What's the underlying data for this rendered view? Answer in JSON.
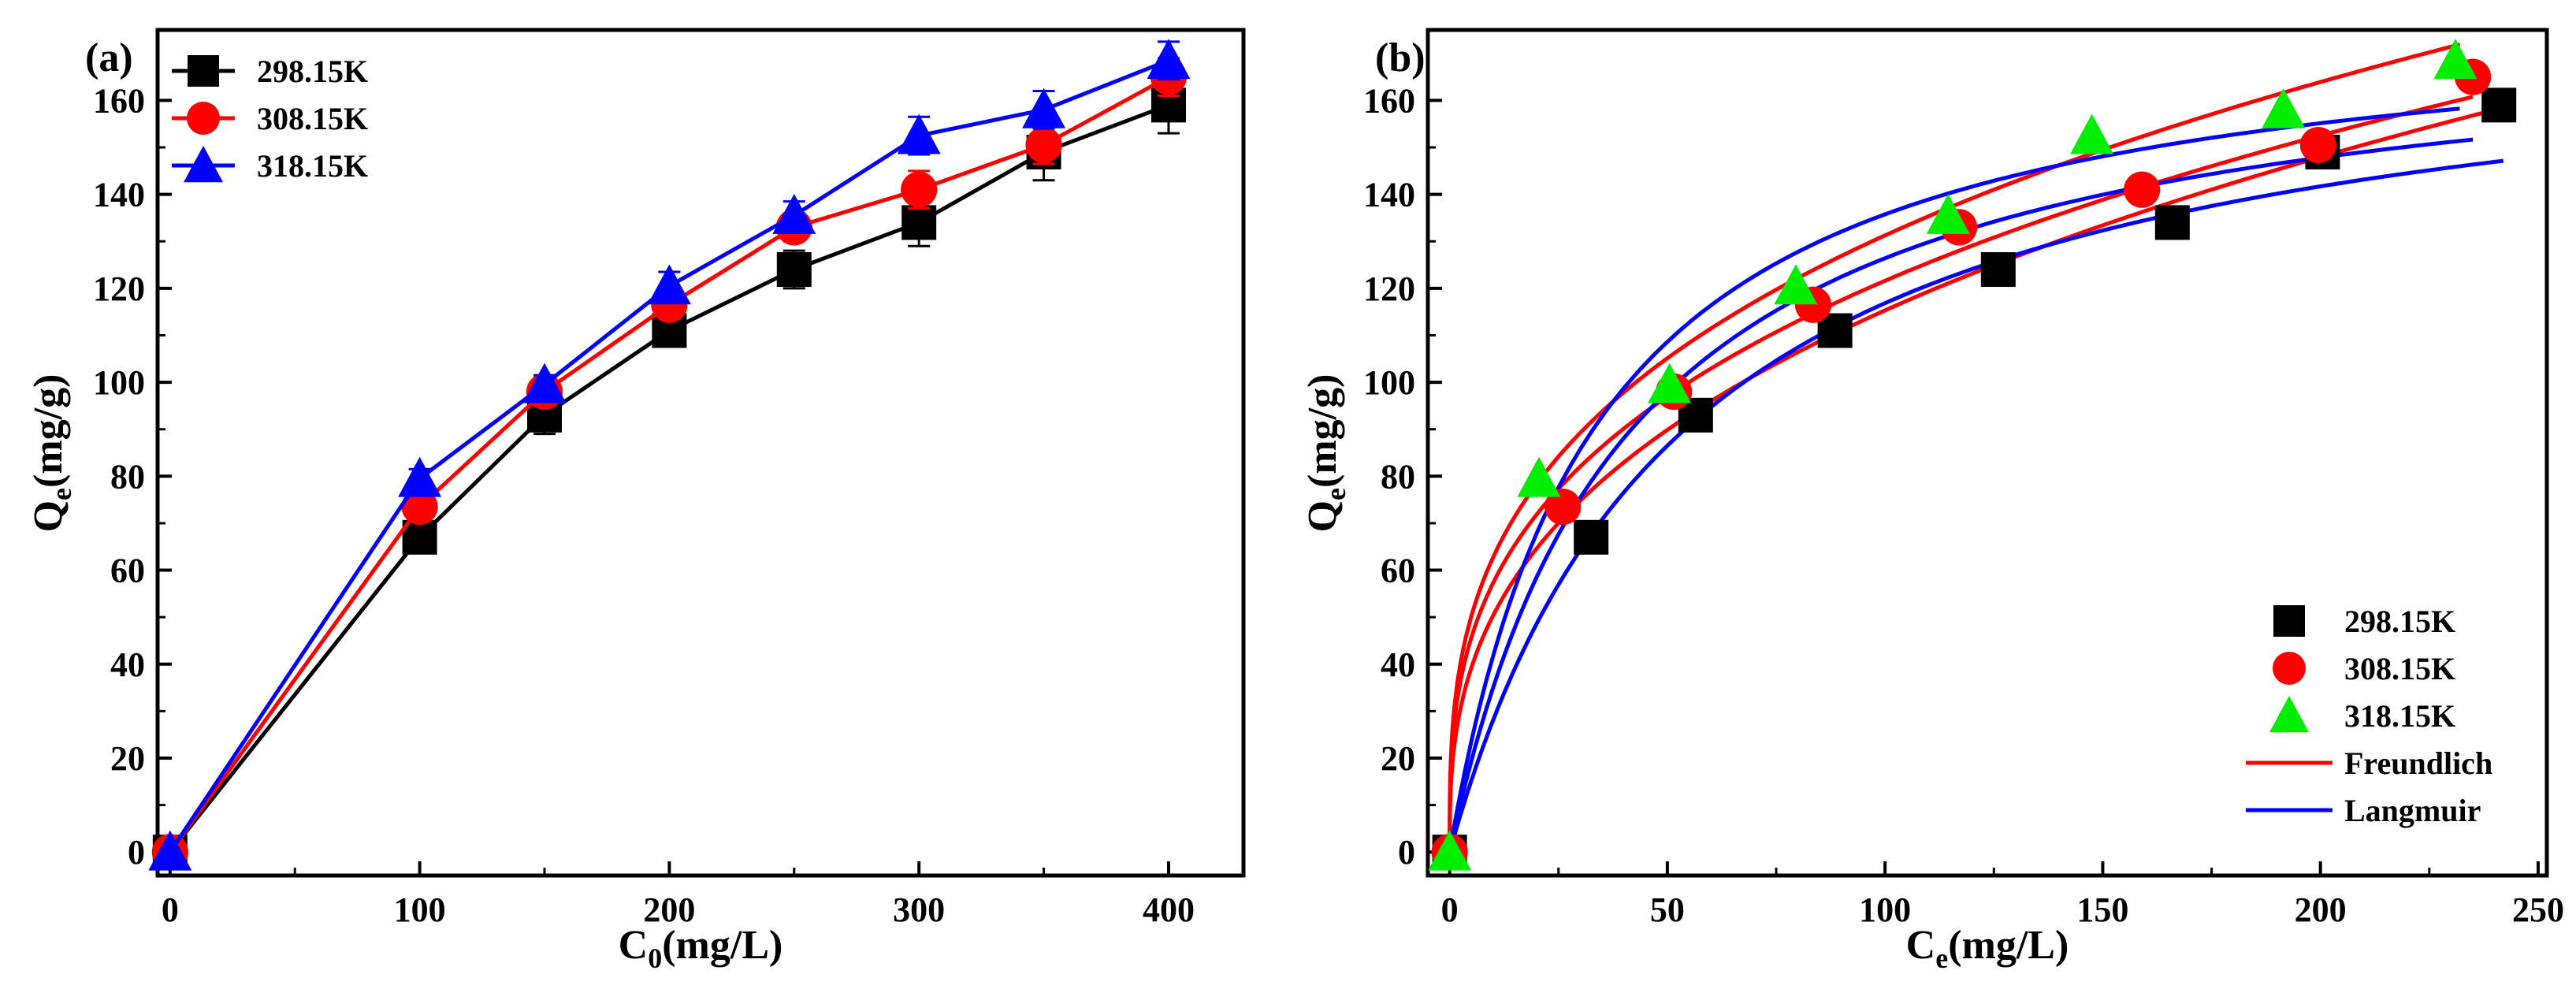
{
  "chart_data": [
    {
      "type": "line",
      "panel_label": "(a)",
      "xlabel": "C",
      "xlabel_sub": "0",
      "xlabel_unit": "(mg/L)",
      "ylabel": "Q",
      "ylabel_sub": "e",
      "ylabel_unit": "(mg/g)",
      "xlim": [
        -5,
        430
      ],
      "ylim": [
        -5,
        175
      ],
      "xticks": [
        0,
        100,
        200,
        300,
        400
      ],
      "yticks": [
        0,
        20,
        40,
        60,
        80,
        100,
        120,
        140,
        160
      ],
      "legend_position": "top-left",
      "series": [
        {
          "name": "298.15K",
          "color": "#000000",
          "marker": "square",
          "x": [
            0,
            100,
            150,
            200,
            250,
            300,
            350,
            400
          ],
          "y": [
            0,
            67,
            93,
            111,
            124,
            134,
            149,
            159
          ],
          "err": [
            0,
            3,
            4,
            3,
            4,
            5,
            6,
            6
          ]
        },
        {
          "name": "308.15K",
          "color": "#ff0000",
          "marker": "circle",
          "x": [
            0,
            100,
            150,
            200,
            250,
            300,
            350,
            400
          ],
          "y": [
            0,
            73.5,
            98,
            116.5,
            133,
            141,
            150.5,
            165
          ],
          "err": [
            0,
            2,
            3,
            3,
            3,
            4,
            4,
            4
          ]
        },
        {
          "name": "318.15K",
          "color": "#0000ff",
          "marker": "triangle",
          "x": [
            0,
            100,
            150,
            200,
            250,
            300,
            350,
            400
          ],
          "y": [
            0,
            79.5,
            99.5,
            120.5,
            135.5,
            152.5,
            158,
            168.5
          ],
          "err": [
            0,
            2,
            2,
            3,
            3,
            4,
            4,
            4
          ]
        }
      ]
    },
    {
      "type": "scatter",
      "panel_label": "(b)",
      "xlabel": "C",
      "xlabel_sub": "e",
      "xlabel_unit": "(mg/L)",
      "ylabel": "Q",
      "ylabel_sub": "e",
      "ylabel_unit": "(mg/g)",
      "xlim": [
        -5,
        252
      ],
      "ylim": [
        -5,
        175
      ],
      "xticks": [
        0,
        50,
        100,
        150,
        200,
        250
      ],
      "yticks": [
        0,
        20,
        40,
        60,
        80,
        100,
        120,
        140,
        160
      ],
      "legend_position": "bottom-right",
      "series": [
        {
          "name": "298.15K",
          "color": "#000000",
          "marker": "square",
          "x": [
            0,
            32.5,
            56.5,
            88.5,
            126,
            166,
            200.5,
            241
          ],
          "y": [
            0,
            67,
            93,
            111,
            124,
            134,
            149,
            159
          ]
        },
        {
          "name": "308.15K",
          "color": "#ff0000",
          "marker": "circle",
          "x": [
            0,
            26,
            51.5,
            83.5,
            117,
            159,
            199.5,
            235
          ],
          "y": [
            0,
            73.5,
            98,
            116.5,
            133,
            141,
            150.5,
            165
          ]
        },
        {
          "name": "318.15K",
          "color": "#00ee00",
          "marker": "triangle",
          "x": [
            0,
            20.5,
            50.5,
            79.5,
            114.5,
            147.5,
            191.5,
            231
          ],
          "y": [
            0,
            79.5,
            99.5,
            120.5,
            135.5,
            152.5,
            158,
            168.5
          ]
        }
      ],
      "fits": [
        {
          "name": "Freundlich",
          "color": "#ff0000",
          "model": "freundlich",
          "curves": [
            {
              "K": 22.0,
              "n": 2.78,
              "x_max": 242
            },
            {
              "K": 27.0,
              "n": 3.06,
              "x_max": 235
            },
            {
              "K": 30.0,
              "n": 3.12,
              "x_max": 232
            }
          ]
        },
        {
          "name": "Langmuir",
          "color": "#0000ff",
          "model": "langmuir",
          "curves": [
            {
              "qm": 180,
              "KL": 0.0185,
              "x_max": 242
            },
            {
              "qm": 178,
              "KL": 0.0245,
              "x_max": 235
            },
            {
              "qm": 181,
              "KL": 0.03,
              "x_max": 232
            }
          ]
        }
      ]
    }
  ]
}
